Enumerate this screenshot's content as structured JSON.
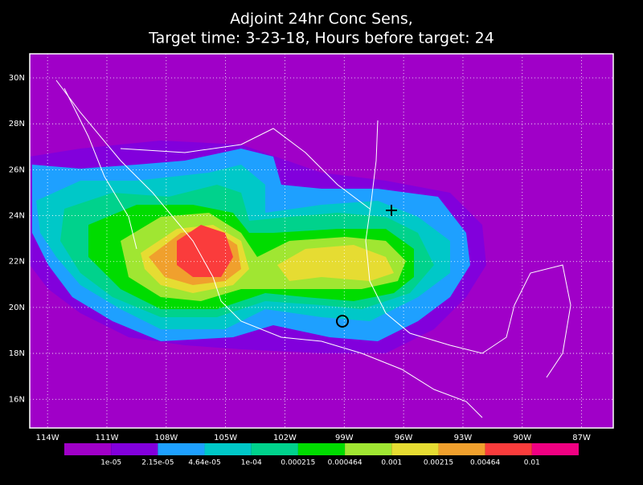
{
  "title": [
    "Adjoint 24hr Conc Sens,",
    "Target time: 3-23-18, Hours before target: 24"
  ],
  "map": {
    "xlim": [
      -114.9,
      -85.4
    ],
    "ylim": [
      14.75,
      31.05
    ],
    "grid": true,
    "xticks": [
      {
        "value": -114,
        "label": "114W"
      },
      {
        "value": -111,
        "label": "111W"
      },
      {
        "value": -108,
        "label": "108W"
      },
      {
        "value": -105,
        "label": "105W"
      },
      {
        "value": -102,
        "label": "102W"
      },
      {
        "value": -99,
        "label": "99W"
      },
      {
        "value": -96,
        "label": "96W"
      },
      {
        "value": -93,
        "label": "93W"
      },
      {
        "value": -90,
        "label": "90W"
      },
      {
        "value": -87,
        "label": "87W"
      }
    ],
    "yticks": [
      {
        "value": 16,
        "label": "16N"
      },
      {
        "value": 18,
        "label": "18N"
      },
      {
        "value": 20,
        "label": "20N"
      },
      {
        "value": 22,
        "label": "22N"
      },
      {
        "value": 24,
        "label": "24N"
      },
      {
        "value": 26,
        "label": "26N"
      },
      {
        "value": 28,
        "label": "28N"
      },
      {
        "value": 30,
        "label": "30N"
      }
    ]
  },
  "colorbar": {
    "colors": [
      "#a000c8",
      "#8200dc",
      "#1ea0ff",
      "#00c8c8",
      "#00d28c",
      "#00dc00",
      "#a0e632",
      "#e6dc32",
      "#f0a02d",
      "#fa3c3c",
      "#f00082"
    ],
    "labels": [
      "1e-05",
      "2.15e-05",
      "4.64e-05",
      "1e-04",
      "0.000215",
      "0.000464",
      "0.001",
      "0.00215",
      "0.00464",
      "0.01"
    ]
  }
}
